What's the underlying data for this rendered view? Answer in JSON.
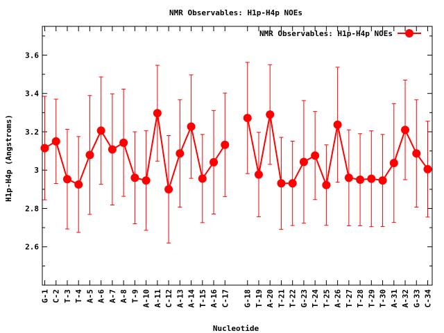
{
  "chart_data": {
    "type": "line",
    "title": "NMR Observables: H1p-H4p NOEs",
    "xlabel": "Nucleotide",
    "ylabel": "H1p-H4p (Angstroms)",
    "ylim": [
      2.4,
      3.75
    ],
    "yticks": [
      2.6,
      2.8,
      3.0,
      3.2,
      3.4,
      3.6
    ],
    "ytick_labels": [
      "2.6",
      "2.8",
      "3",
      "3.2",
      "3.4",
      "3.6"
    ],
    "legend_position": "top-right",
    "grid": false,
    "series": [
      {
        "name": "NMR Observables: H1p-H4p NOEs",
        "color": "#ff0000",
        "segments": [
          {
            "labels": [
              "G-1",
              "C-2",
              "T-3",
              "T-4",
              "A-5",
              "A-6",
              "A-7",
              "A-8",
              "T-9",
              "A-10",
              "A-11",
              "C-12",
              "A-13",
              "A-14",
              "T-15",
              "A-16",
              "C-17"
            ],
            "values": [
              3.115,
              3.15,
              2.953,
              2.925,
              3.079,
              3.206,
              3.108,
              3.143,
              2.96,
              2.946,
              3.297,
              2.9,
              3.087,
              3.227,
              2.956,
              3.041,
              3.132
            ],
            "errors": [
              0.27,
              0.22,
              0.26,
              0.25,
              0.31,
              0.28,
              0.29,
              0.28,
              0.24,
              0.26,
              0.25,
              0.28,
              0.28,
              0.27,
              0.23,
              0.27,
              0.27
            ]
          },
          {
            "labels": [
              "G-18",
              "T-19",
              "A-20",
              "T-21",
              "T-22",
              "G-23",
              "T-24",
              "T-25",
              "A-26",
              "T-27",
              "T-28",
              "T-29",
              "T-30",
              "A-31",
              "A-32",
              "G-33",
              "C-34"
            ],
            "values": [
              3.272,
              2.977,
              3.29,
              2.931,
              2.931,
              3.043,
              3.076,
              2.922,
              3.237,
              2.96,
              2.95,
              2.955,
              2.946,
              3.037,
              3.21,
              3.087,
              3.005
            ],
            "errors": [
              0.29,
              0.22,
              0.26,
              0.24,
              0.22,
              0.32,
              0.23,
              0.21,
              0.3,
              0.25,
              0.24,
              0.25,
              0.24,
              0.31,
              0.26,
              0.28,
              0.25
            ]
          }
        ]
      }
    ]
  }
}
